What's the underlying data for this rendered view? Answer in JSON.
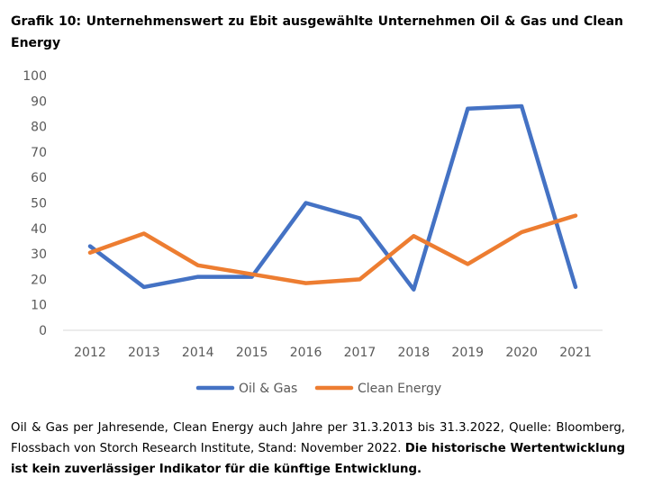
{
  "title": "Grafik 10: Unternehmenswert zu Ebit ausgewählte Unternehmen Oil & Gas und Clean Energy",
  "footnote": {
    "text": "Oil & Gas per Jahresende, Clean Energy auch Jahre per 31.3.2013 bis 31.3.2022, Quelle: Bloomberg, Flossbach von Storch Research Institute, Stand: November 2022.",
    "bold_text": "Die historische Wertentwicklung ist kein zuverlässiger Indikator für die künftige Entwicklung."
  },
  "chart_data": {
    "type": "line",
    "categories": [
      "2012",
      "2013",
      "2014",
      "2015",
      "2016",
      "2017",
      "2018",
      "2019",
      "2020",
      "2021"
    ],
    "ylim": [
      0,
      100
    ],
    "yticks": [
      0,
      10,
      20,
      30,
      40,
      50,
      60,
      70,
      80,
      90,
      100
    ],
    "grid": false,
    "legend_position": "bottom",
    "series": [
      {
        "name": "Oil & Gas",
        "color": "#4472C4",
        "values": [
          33,
          17,
          21,
          21,
          50,
          44,
          16,
          87,
          88,
          17
        ]
      },
      {
        "name": "Clean Energy",
        "color": "#ED7D31",
        "values": [
          30.5,
          38,
          25.5,
          22,
          18.5,
          20,
          37,
          26,
          38.5,
          45
        ]
      }
    ]
  }
}
